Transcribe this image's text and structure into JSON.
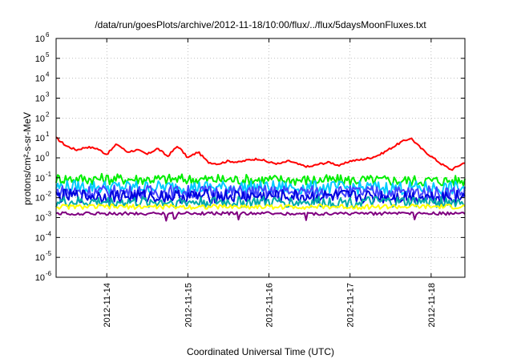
{
  "chart_data": {
    "type": "line",
    "title": "/data/run/goesPlots/archive/2012-11-18/10:00/flux/../flux/5daysMoonFluxes.txt",
    "xlabel": "Coordinated Universal Time (UTC)",
    "ylabel": "protons/cm²-s-sr-MeV",
    "yscale": "log",
    "ylim": [
      1e-06,
      1000000.0
    ],
    "y_ticks": [
      {
        "base": "10",
        "exp": "6"
      },
      {
        "base": "10",
        "exp": "5"
      },
      {
        "base": "10",
        "exp": "4"
      },
      {
        "base": "10",
        "exp": "3"
      },
      {
        "base": "10",
        "exp": "2"
      },
      {
        "base": "10",
        "exp": "1"
      },
      {
        "base": "10",
        "exp": "0"
      },
      {
        "base": "10",
        "exp": "-1"
      },
      {
        "base": "10",
        "exp": "-2"
      },
      {
        "base": "10",
        "exp": "-3"
      },
      {
        "base": "10",
        "exp": "-4"
      },
      {
        "base": "10",
        "exp": "-5"
      },
      {
        "base": "10",
        "exp": "-6"
      }
    ],
    "xlim": [
      "2012-11-13T09:00",
      "2012-11-18T10:00"
    ],
    "x_ticks": [
      "2012-11-14",
      "2012-11-15",
      "2012-11-16",
      "2012-11-17",
      "2012-11-18"
    ],
    "grid": true,
    "series": [
      {
        "color": "#ff0000",
        "x": [
          "2012-11-13T09:00",
          "2012-11-13T12:00",
          "2012-11-13T15:00",
          "2012-11-13T18:00",
          "2012-11-13T21:00",
          "2012-11-14T00:00",
          "2012-11-14T03:00",
          "2012-11-14T06:00",
          "2012-11-14T09:00",
          "2012-11-14T12:00",
          "2012-11-14T15:00",
          "2012-11-14T18:00",
          "2012-11-14T21:00",
          "2012-11-15T00:00",
          "2012-11-15T03:00",
          "2012-11-15T06:00",
          "2012-11-15T09:00",
          "2012-11-15T12:00",
          "2012-11-15T15:00",
          "2012-11-15T18:00",
          "2012-11-15T21:00",
          "2012-11-16T00:00",
          "2012-11-16T03:00",
          "2012-11-16T06:00",
          "2012-11-16T09:00",
          "2012-11-16T12:00",
          "2012-11-16T15:00",
          "2012-11-16T18:00",
          "2012-11-16T21:00",
          "2012-11-17T00:00",
          "2012-11-17T03:00",
          "2012-11-17T06:00",
          "2012-11-17T09:00",
          "2012-11-17T12:00",
          "2012-11-17T15:00",
          "2012-11-17T18:00",
          "2012-11-17T21:00",
          "2012-11-18T00:00",
          "2012-11-18T03:00",
          "2012-11-18T06:00",
          "2012-11-18T10:00"
        ],
        "values": [
          10,
          4,
          2.5,
          3.5,
          3,
          1.5,
          5,
          2,
          2.5,
          1.5,
          3,
          1.2,
          4,
          1,
          2,
          0.6,
          0.5,
          0.7,
          0.6,
          0.8,
          0.9,
          0.6,
          0.5,
          0.7,
          0.45,
          0.35,
          0.5,
          0.6,
          0.4,
          0.7,
          0.8,
          1,
          1.5,
          3,
          6,
          10,
          3,
          1.2,
          0.5,
          0.25,
          0.6
        ]
      },
      {
        "color": "#00ee00",
        "x": [
          "2012-11-13T09:00",
          "2012-11-18T10:00"
        ],
        "values": [
          0.09,
          0.07
        ]
      },
      {
        "color": "#00ccff",
        "x": [
          "2012-11-13T09:00",
          "2012-11-18T10:00"
        ],
        "values": [
          0.035,
          0.03
        ]
      },
      {
        "color": "#4444ff",
        "x": [
          "2012-11-13T09:00",
          "2012-11-18T10:00"
        ],
        "values": [
          0.02,
          0.018
        ]
      },
      {
        "color": "#0000dd",
        "x": [
          "2012-11-13T09:00",
          "2012-11-18T10:00"
        ],
        "values": [
          0.012,
          0.011
        ]
      },
      {
        "color": "#00aaaa",
        "x": [
          "2012-11-13T09:00",
          "2012-11-18T10:00"
        ],
        "values": [
          0.006,
          0.006
        ]
      },
      {
        "color": "#ffff00",
        "x": [
          "2012-11-13T09:00",
          "2012-11-18T10:00"
        ],
        "values": [
          0.0035,
          0.0035
        ]
      },
      {
        "color": "#800080",
        "x": [
          "2012-11-13T09:00",
          "2012-11-18T10:00"
        ],
        "values": [
          0.0016,
          0.0016
        ]
      }
    ]
  }
}
